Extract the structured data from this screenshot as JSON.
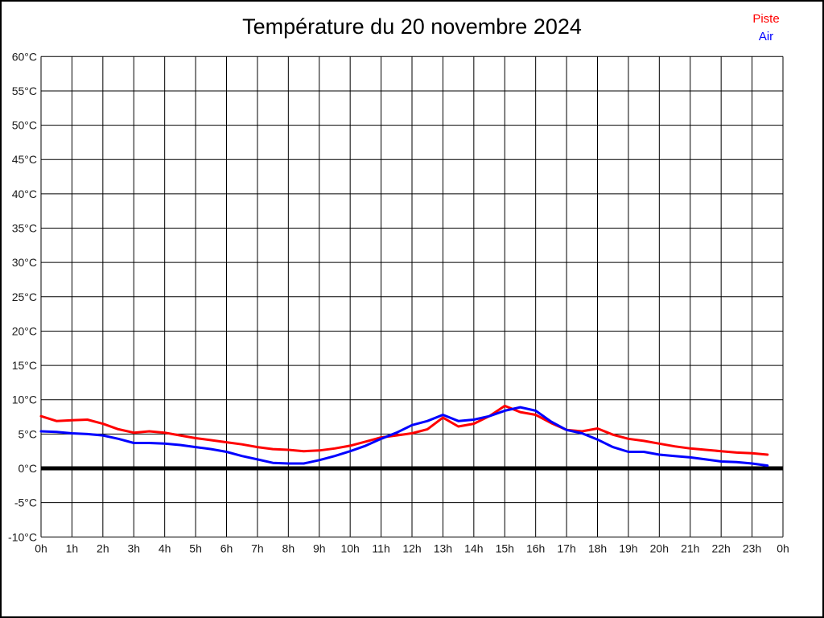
{
  "title": "Température du 20 novembre 2024",
  "legend": {
    "items": [
      {
        "label": "Piste",
        "color": "#ff0000"
      },
      {
        "label": "Air",
        "color": "#0000ff"
      }
    ]
  },
  "colors": {
    "grid": "#000000",
    "zero_line": "#000000",
    "tick_text": "#1a1a1a",
    "title_text": "#000000"
  },
  "chart_data": {
    "type": "line",
    "title": "Température du 20 novembre 2024",
    "xlabel": "",
    "ylabel": "",
    "xlim": [
      0,
      24
    ],
    "ylim": [
      -10,
      60
    ],
    "grid": "on",
    "legend_position": "top-right",
    "x_ticks": [
      "0h",
      "1h",
      "2h",
      "3h",
      "4h",
      "5h",
      "6h",
      "7h",
      "8h",
      "9h",
      "10h",
      "11h",
      "12h",
      "13h",
      "14h",
      "15h",
      "16h",
      "17h",
      "18h",
      "19h",
      "20h",
      "21h",
      "22h",
      "23h",
      "0h"
    ],
    "x_tick_hours": [
      0,
      1,
      2,
      3,
      4,
      5,
      6,
      7,
      8,
      9,
      10,
      11,
      12,
      13,
      14,
      15,
      16,
      17,
      18,
      19,
      20,
      21,
      22,
      23,
      24
    ],
    "y_ticks": [
      "60°C",
      "55°C",
      "50°C",
      "45°C",
      "40°C",
      "35°C",
      "30°C",
      "25°C",
      "20°C",
      "15°C",
      "10°C",
      "5°C",
      "0°C",
      "-5°C",
      "-10°C"
    ],
    "y_tick_values": [
      60,
      55,
      50,
      45,
      40,
      35,
      30,
      25,
      20,
      15,
      10,
      5,
      0,
      -5,
      -10
    ],
    "zero_line_value": 0,
    "series": [
      {
        "name": "Piste",
        "color": "#ff0000",
        "x": [
          0,
          0.5,
          1,
          1.5,
          2,
          2.5,
          3,
          3.5,
          4,
          4.5,
          5,
          5.5,
          6,
          6.5,
          7,
          7.5,
          8,
          8.5,
          9,
          9.5,
          10,
          10.5,
          11,
          11.5,
          12,
          12.5,
          13,
          13.5,
          14,
          14.5,
          15,
          15.5,
          16,
          16.5,
          17,
          17.5,
          18,
          18.5,
          19,
          19.5,
          20,
          20.5,
          21,
          21.5,
          22,
          22.5,
          23,
          23.5
        ],
        "values": [
          7.6,
          6.9,
          7.0,
          7.1,
          6.5,
          5.7,
          5.2,
          5.4,
          5.2,
          4.8,
          4.4,
          4.1,
          3.8,
          3.5,
          3.1,
          2.8,
          2.7,
          2.5,
          2.6,
          2.9,
          3.3,
          3.9,
          4.5,
          4.8,
          5.1,
          5.7,
          7.4,
          6.1,
          6.5,
          7.6,
          9.1,
          8.2,
          7.8,
          6.6,
          5.6,
          5.4,
          5.8,
          4.9,
          4.3,
          4.0,
          3.6,
          3.2,
          2.9,
          2.7,
          2.5,
          2.3,
          2.2,
          2.0
        ]
      },
      {
        "name": "Air",
        "color": "#0000ff",
        "x": [
          0,
          0.5,
          1,
          1.5,
          2,
          2.5,
          3,
          3.5,
          4,
          4.5,
          5,
          5.5,
          6,
          6.5,
          7,
          7.5,
          8,
          8.5,
          9,
          9.5,
          10,
          10.5,
          11,
          11.5,
          12,
          12.5,
          13,
          13.5,
          14,
          14.5,
          15,
          15.5,
          16,
          16.5,
          17,
          17.5,
          18,
          18.5,
          19,
          19.5,
          20,
          20.5,
          21,
          21.5,
          22,
          22.5,
          23,
          23.5
        ],
        "values": [
          5.4,
          5.3,
          5.1,
          5.0,
          4.8,
          4.3,
          3.7,
          3.7,
          3.6,
          3.4,
          3.1,
          2.8,
          2.4,
          1.8,
          1.3,
          0.8,
          0.7,
          0.7,
          1.2,
          1.8,
          2.5,
          3.3,
          4.3,
          5.2,
          6.3,
          6.9,
          7.8,
          6.9,
          7.1,
          7.6,
          8.4,
          8.9,
          8.4,
          6.8,
          5.6,
          5.1,
          4.2,
          3.1,
          2.4,
          2.4,
          2.0,
          1.8,
          1.6,
          1.3,
          1.0,
          0.9,
          0.7,
          0.4
        ]
      }
    ]
  }
}
